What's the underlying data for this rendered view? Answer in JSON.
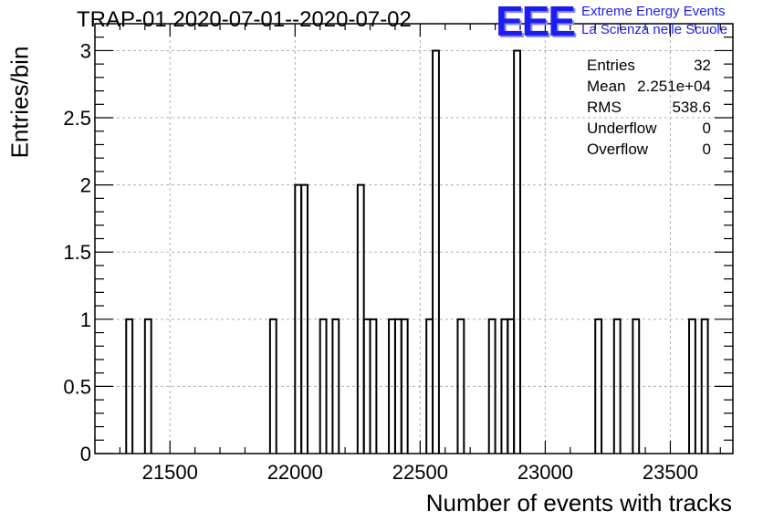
{
  "title": "TRAP-01 2020-07-01--2020-07-02",
  "logo": {
    "mark": "EEE",
    "line1": "Extreme Energy Events",
    "line2": "La Scienza nelle Scuole",
    "color": "#1d1df0"
  },
  "stats": [
    {
      "key": "Entries",
      "value": "32"
    },
    {
      "key": "Mean",
      "value": "2.251e+04"
    },
    {
      "key": "RMS",
      "value": "538.6"
    },
    {
      "key": "Underflow",
      "value": "0"
    },
    {
      "key": "Overflow",
      "value": "0"
    }
  ],
  "chart_data": {
    "type": "histogram",
    "title": "TRAP-01 2020-07-01--2020-07-02",
    "xlabel": "Number of events with tracks",
    "ylabel": "Entries/bin",
    "xlim": [
      21200,
      23750
    ],
    "ylim": [
      0,
      3.2
    ],
    "bin_width": 25,
    "grid": true,
    "x_ticks": [
      21500,
      22000,
      22500,
      23000,
      23500
    ],
    "y_ticks": [
      0,
      0.5,
      1,
      1.5,
      2,
      2.5,
      3
    ],
    "y_tick_labels": [
      "0",
      "0.5",
      "1",
      "1.5",
      "2",
      "2.5",
      "3"
    ],
    "bins": [
      {
        "x": 21325,
        "count": 1
      },
      {
        "x": 21400,
        "count": 1
      },
      {
        "x": 21900,
        "count": 1
      },
      {
        "x": 22000,
        "count": 2
      },
      {
        "x": 22025,
        "count": 2
      },
      {
        "x": 22100,
        "count": 1
      },
      {
        "x": 22150,
        "count": 1
      },
      {
        "x": 22250,
        "count": 2
      },
      {
        "x": 22275,
        "count": 1
      },
      {
        "x": 22300,
        "count": 1
      },
      {
        "x": 22375,
        "count": 1
      },
      {
        "x": 22400,
        "count": 1
      },
      {
        "x": 22425,
        "count": 1
      },
      {
        "x": 22525,
        "count": 1
      },
      {
        "x": 22550,
        "count": 3
      },
      {
        "x": 22650,
        "count": 1
      },
      {
        "x": 22775,
        "count": 1
      },
      {
        "x": 22825,
        "count": 1
      },
      {
        "x": 22850,
        "count": 1
      },
      {
        "x": 22875,
        "count": 3
      },
      {
        "x": 23200,
        "count": 1
      },
      {
        "x": 23275,
        "count": 1
      },
      {
        "x": 23350,
        "count": 1
      },
      {
        "x": 23575,
        "count": 1
      },
      {
        "x": 23625,
        "count": 1
      }
    ],
    "line_color": "#000000",
    "grid_color": "#b0b0b0"
  }
}
